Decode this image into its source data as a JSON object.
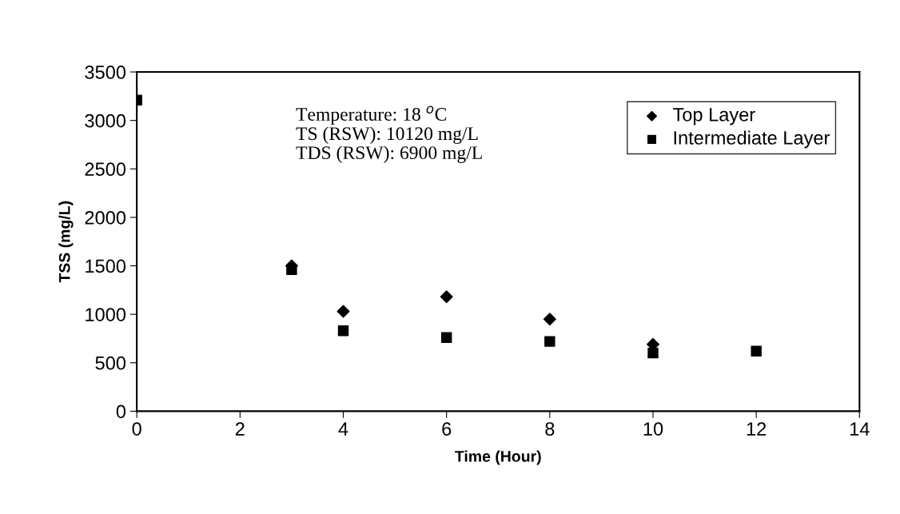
{
  "chart_data": {
    "type": "scatter",
    "xlabel": "Time (Hour)",
    "ylabel": "TSS (mg/L)",
    "x": [
      0,
      3,
      4,
      6,
      8,
      10,
      12
    ],
    "series": [
      {
        "name": "Top Layer",
        "color": "#000000",
        "marker": "diamond",
        "values": [
          null,
          1500,
          1030,
          1180,
          950,
          690,
          null
        ]
      },
      {
        "name": "Intermediate Layer",
        "color": "#000000",
        "marker": "square",
        "values": [
          3210,
          1460,
          830,
          760,
          720,
          600,
          620
        ]
      }
    ],
    "xlim": [
      0,
      14
    ],
    "xticks": [
      0,
      2,
      4,
      6,
      8,
      10,
      12,
      14
    ],
    "ylim": [
      0,
      3500
    ],
    "yticks": [
      0,
      500,
      1000,
      1500,
      2000,
      2500,
      3000,
      3500
    ],
    "annotations": [
      "Temperature: 18 $^{o}$C\nTS (RSW): 10120 mg/L\nTDS (RSW): 6900 mg/L"
    ],
    "grid": false,
    "legend": "top right"
  }
}
